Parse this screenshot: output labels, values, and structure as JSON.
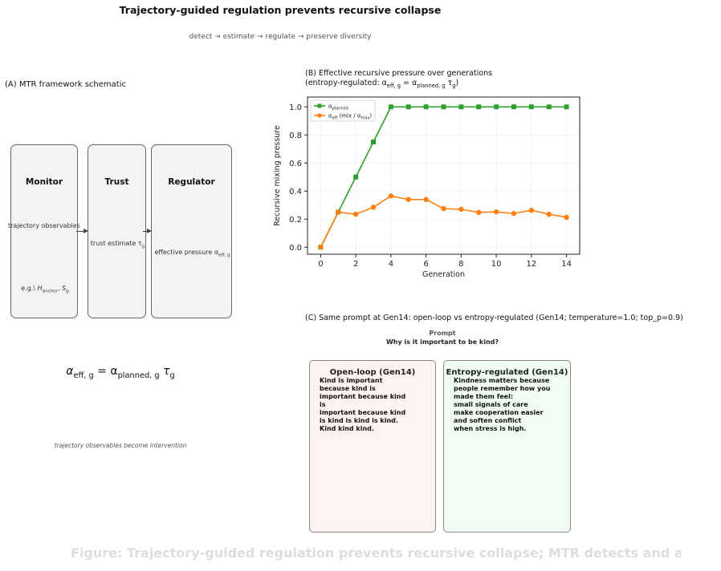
{
  "title": "Trajectory-guided regulation prevents recursive collapse",
  "pipeline": "detect → estimate → regulate → preserve diversity",
  "panel_a": {
    "title": "(A) MTR framework schematic",
    "boxes": [
      {
        "title": "Monitor",
        "text": "trajectory observables",
        "example_prefix": "e.g.\\ ",
        "example_h": "H",
        "example_h_sub": "anchor",
        "example_s": "S",
        "example_s_sub": "g"
      },
      {
        "title": "Trust",
        "text": "trust estimate τ",
        "text_sub": "g"
      },
      {
        "title": "Regulator",
        "text": "effective pressure α",
        "text_sub": "eff, g"
      }
    ],
    "formula": {
      "lhs": "α",
      "lhs_sub": "eff, g",
      "eq": " = α",
      "rhs_sub": "planned, g",
      "tau": " τ",
      "tau_sub": "g"
    },
    "caption": "trajectory observables become intervention"
  },
  "panel_b": {
    "title_line1": "(B) Effective recursive pressure over generations",
    "title_line2_prefix": "(entropy-regulated: α",
    "title_line2_sub1": "eff, g",
    "title_line2_mid": " = α",
    "title_line2_sub2": "planned, g",
    "title_line2_end": " τ",
    "title_line2_sub3": "g",
    "title_line2_close": ")"
  },
  "chart_data": {
    "type": "line",
    "x": [
      0,
      1,
      2,
      3,
      4,
      5,
      6,
      7,
      8,
      9,
      10,
      11,
      12,
      13,
      14
    ],
    "series": [
      {
        "name": "α_planned",
        "color": "#2ca02c",
        "marker": "square",
        "values": [
          0.0,
          0.25,
          0.5,
          0.75,
          1.0,
          1.0,
          1.0,
          1.0,
          1.0,
          1.0,
          1.0,
          1.0,
          1.0,
          1.0,
          1.0
        ]
      },
      {
        "name": "α_eff (mix / α_max)",
        "color": "#ff7f0e",
        "marker": "circle",
        "values": [
          0.0,
          0.25,
          0.235,
          0.285,
          0.365,
          0.34,
          0.34,
          0.275,
          0.27,
          0.248,
          0.252,
          0.24,
          0.263,
          0.235,
          0.213
        ]
      }
    ],
    "xlabel": "Generation",
    "ylabel": "Recursive mixing pressure",
    "xlim": [
      -0.75,
      14.75
    ],
    "ylim": [
      -0.05,
      1.07
    ],
    "xticks": [
      0,
      2,
      4,
      6,
      8,
      10,
      12,
      14
    ],
    "yticks": [
      0.0,
      0.2,
      0.4,
      0.6,
      0.8,
      1.0
    ],
    "grid": true,
    "legend_placement": "top-left",
    "legend": [
      {
        "base": "α",
        "sub": "planned",
        "suffix": ""
      },
      {
        "base": "α",
        "sub": "eff",
        "suffix": " (mix / α",
        "suffix_sub": "max",
        "close": ")"
      }
    ]
  },
  "panel_c": {
    "title": "(C) Same prompt at Gen14: open-loop vs entropy-regulated (Gen14; temperature=1.0; top_p=0.9)",
    "prompt_label": "Prompt",
    "prompt_text": "Why is it important to be kind?",
    "cards": [
      {
        "title": "Open-loop (Gen14)",
        "bg": "#fff3f1",
        "body": "Kind is important\nbecause kind is\nimportant because kind\nis\nimportant because kind\nis kind is kind is kind.\nKind kind kind."
      },
      {
        "title": "Entropy-regulated (Gen14)",
        "bg": "#f1fdf3",
        "body": "Kindness matters because\npeople remember how you\nmade them feel:\nsmall signals of care\nmake cooperation easier\nand soften conflict\nwhen stress is high."
      }
    ]
  },
  "footer_caption": "Figure: Trajectory-guided regulation prevents recursive collapse; MTR detects and adjusts"
}
